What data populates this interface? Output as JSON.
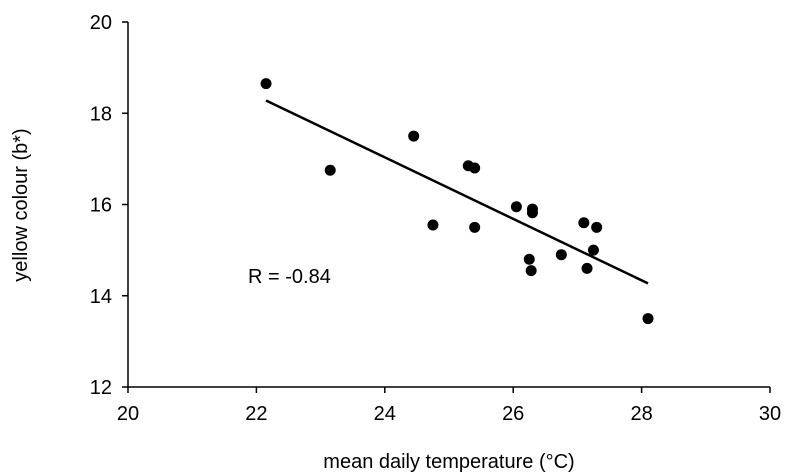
{
  "chart_data": {
    "type": "scatter",
    "title": "",
    "xlabel": "mean daily temperature (°C)",
    "ylabel": "yellow colour (b*)",
    "xlim": [
      20,
      30
    ],
    "ylim": [
      12,
      20
    ],
    "xticks": [
      20,
      22,
      24,
      26,
      28,
      30
    ],
    "yticks": [
      12,
      14,
      16,
      18,
      20
    ],
    "grid": false,
    "legend": "none",
    "points": [
      {
        "x": 22.15,
        "y": 18.65
      },
      {
        "x": 23.15,
        "y": 16.75
      },
      {
        "x": 24.45,
        "y": 17.5
      },
      {
        "x": 24.75,
        "y": 15.55
      },
      {
        "x": 25.3,
        "y": 16.85
      },
      {
        "x": 25.4,
        "y": 16.8
      },
      {
        "x": 25.4,
        "y": 15.5
      },
      {
        "x": 26.05,
        "y": 15.95
      },
      {
        "x": 26.25,
        "y": 14.8
      },
      {
        "x": 26.28,
        "y": 14.55
      },
      {
        "x": 26.3,
        "y": 15.9
      },
      {
        "x": 26.3,
        "y": 15.82
      },
      {
        "x": 26.75,
        "y": 14.9
      },
      {
        "x": 27.1,
        "y": 15.6
      },
      {
        "x": 27.15,
        "y": 14.6
      },
      {
        "x": 27.25,
        "y": 15.0
      },
      {
        "x": 27.3,
        "y": 15.5
      },
      {
        "x": 28.1,
        "y": 13.5
      }
    ],
    "trendline": {
      "x": [
        22.15,
        28.1
      ],
      "y": [
        18.28,
        14.27
      ]
    },
    "annotation": "R = -0.84",
    "colors": {
      "marker": "#000000",
      "line": "#000000",
      "axis": "#000000"
    }
  }
}
